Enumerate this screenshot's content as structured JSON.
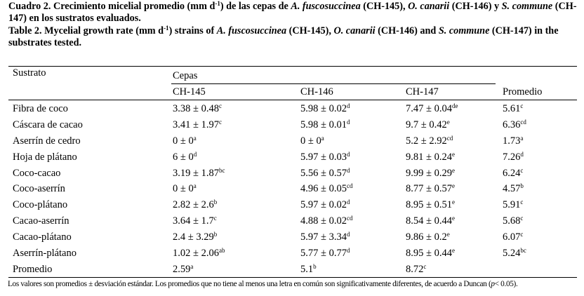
{
  "caption_es": {
    "p1": "Cuadro 2. Crecimiento micelial promedio (mm d",
    "sup": "-1",
    "p2": ") de las cepas de ",
    "sp1": "A. fuscosuccinea",
    "p3": " (CH-145), ",
    "sp2": "O. canarii",
    "p4": " (CH-146) y ",
    "sp3": "S. commune",
    "p5": " (CH-147) en los sustratos evaluados."
  },
  "caption_en": {
    "p1": "Table 2. Mycelial growth rate (mm d",
    "sup": "-1",
    "p2": ") strains of ",
    "sp1": "A. fuscosuccinea",
    "p3": " (CH-145), ",
    "sp2": "O. canarii",
    "p4": " (CH-146) and ",
    "sp3": "S. commune",
    "p5": " (CH-147) in the substrates tested."
  },
  "table": {
    "header": {
      "sustrato": "Sustrato",
      "cepas": "Cepas",
      "strains": [
        "CH-145",
        "CH-146",
        "CH-147"
      ],
      "promedio": "Promedio"
    },
    "rows": [
      {
        "label": "Fibra de coco",
        "cells": [
          {
            "v": "3.38 ± 0.48",
            "s": "c"
          },
          {
            "v": "5.98 ± 0.02",
            "s": "d"
          },
          {
            "v": "7.47 ± 0.04",
            "s": "de"
          },
          {
            "v": "5.61",
            "s": "c"
          }
        ]
      },
      {
        "label": "Cáscara de cacao",
        "cells": [
          {
            "v": "3.41 ± 1.97",
            "s": "c"
          },
          {
            "v": "5.98 ± 0.01",
            "s": "d"
          },
          {
            "v": "9.7 ± 0.42",
            "s": "e"
          },
          {
            "v": "6.36",
            "s": "cd"
          }
        ]
      },
      {
        "label": "Aserrín de cedro",
        "cells": [
          {
            "v": "0 ± 0",
            "s": "a"
          },
          {
            "v": "0 ± 0",
            "s": "a"
          },
          {
            "v": "5.2 ± 2.92",
            "s": "cd"
          },
          {
            "v": "1.73",
            "s": "a"
          }
        ]
      },
      {
        "label": "Hoja de plátano",
        "cells": [
          {
            "v": "6 ± 0",
            "s": "d"
          },
          {
            "v": "5.97 ± 0.03",
            "s": "d"
          },
          {
            "v": "9.81 ± 0.24",
            "s": "e"
          },
          {
            "v": "7.26",
            "s": "d"
          }
        ]
      },
      {
        "label": "Coco-cacao",
        "cells": [
          {
            "v": "3.19 ± 1.87",
            "s": "bc"
          },
          {
            "v": "5.56 ± 0.57",
            "s": "d"
          },
          {
            "v": "9.99 ± 0.29",
            "s": "e"
          },
          {
            "v": "6.24",
            "s": "c"
          }
        ]
      },
      {
        "label": "Coco-aserrín",
        "cells": [
          {
            "v": "0 ± 0",
            "s": "a"
          },
          {
            "v": "4.96 ± 0.05",
            "s": "cd"
          },
          {
            "v": "8.77 ± 0.57",
            "s": "e"
          },
          {
            "v": "4.57",
            "s": "b"
          }
        ]
      },
      {
        "label": "Coco-plátano",
        "cells": [
          {
            "v": "2.82 ± 2.6",
            "s": "b"
          },
          {
            "v": "5.97 ± 0.02",
            "s": "d"
          },
          {
            "v": "8.95 ± 0.51",
            "s": "e"
          },
          {
            "v": "5.91",
            "s": "c"
          }
        ]
      },
      {
        "label": "Cacao-aserrín",
        "cells": [
          {
            "v": "3.64 ± 1.7",
            "s": "c"
          },
          {
            "v": "4.88 ± 0.02",
            "s": "cd"
          },
          {
            "v": "8.54 ± 0.44",
            "s": "e"
          },
          {
            "v": "5.68",
            "s": "c"
          }
        ]
      },
      {
        "label": "Cacao-plátano",
        "cells": [
          {
            "v": "2.4 ± 3.29",
            "s": "b"
          },
          {
            "v": "5.97 ± 3.34",
            "s": "d"
          },
          {
            "v": "9.86 ± 0.2",
            "s": "e"
          },
          {
            "v": "6.07",
            "s": "c"
          }
        ]
      },
      {
        "label": "Aserrín-plátano",
        "cells": [
          {
            "v": "1.02 ± 2.06",
            "s": "ab"
          },
          {
            "v": "5.77 ± 0.77",
            "s": "d"
          },
          {
            "v": "8.95 ± 0.44",
            "s": "e"
          },
          {
            "v": "5.24",
            "s": "bc"
          }
        ]
      },
      {
        "label": "Promedio",
        "cells": [
          {
            "v": "2.59",
            "s": "a"
          },
          {
            "v": "5.1",
            "s": "b"
          },
          {
            "v": "8.72",
            "s": "c"
          },
          {
            "v": "",
            "s": ""
          }
        ]
      }
    ]
  },
  "footnote": {
    "text": "Los valores son promedios ± desviación estándar. Los promedios que no tiene al menos una letra en común son significativamente diferentes, de acuerdo a Duncan (",
    "p": "p",
    "tail": "< 0.05)."
  }
}
